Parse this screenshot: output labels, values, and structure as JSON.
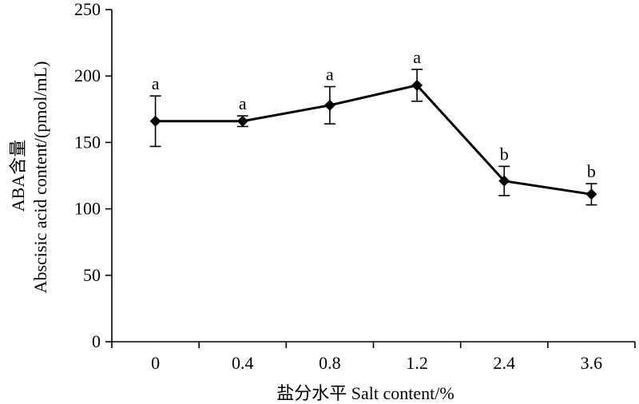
{
  "chart_data": {
    "type": "line",
    "categories": [
      "0",
      "0.4",
      "0.8",
      "1.2",
      "2.4",
      "3.6"
    ],
    "series": [
      {
        "values": [
          166,
          166,
          178,
          193,
          121,
          111
        ],
        "error": [
          19,
          4,
          14,
          12,
          11,
          8
        ],
        "labels": [
          "a",
          "a",
          "a",
          "a",
          "b",
          "b"
        ]
      }
    ],
    "xlabel": "盐分水平 Salt content/%",
    "ylabel_line1": "ABA含量",
    "ylabel_line2": "Abscisic acid content/(pmol/mL)",
    "ylim": [
      0,
      250
    ],
    "yticks": [
      0,
      50,
      100,
      150,
      200,
      250
    ],
    "grid": false,
    "legend": "none",
    "marker": "diamond",
    "line_color": "#000000"
  }
}
